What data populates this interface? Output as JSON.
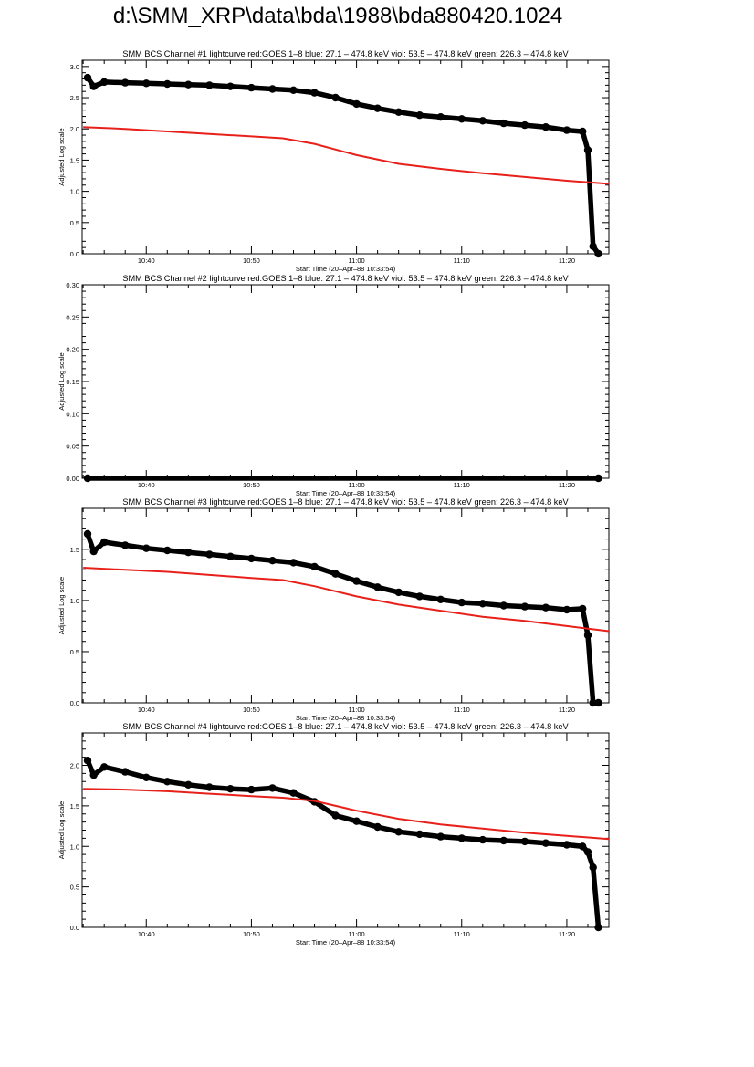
{
  "page": {
    "title": "d:\\SMM_XRP\\data\\bda\\1988\\bda880420.1024"
  },
  "colors": {
    "goes": "#e8201a",
    "bcs": "#000000",
    "axes": "#000000"
  },
  "chart_data": [
    {
      "type": "line",
      "title": "SMM BCS Channel #1 lightcurve  red:GOES 1–8  blue: 27.1 – 474.8 keV  viol: 53.5 – 474.8 keV  green: 226.3 – 474.8 keV",
      "xlabel": "Start Time (20–Apr–88 10:33:54)",
      "ylabel": "Adjusted Log scale",
      "xlim": [
        "10:33:54",
        "11:24:00"
      ],
      "xticks": [
        "10:40",
        "10:50",
        "11:00",
        "11:10",
        "11:20"
      ],
      "ylim": [
        0,
        3.1
      ],
      "yticks": [
        "0.0",
        "0.5",
        "1.0",
        "1.5",
        "2.0",
        "2.5",
        "3.0"
      ],
      "series": [
        {
          "role": "bcs",
          "color": "#000000",
          "x": [
            "10:34:25",
            "10:35:00",
            "10:36:00",
            "10:38:00",
            "10:40:00",
            "10:42:00",
            "10:44:00",
            "10:46:00",
            "10:48:00",
            "10:50:00",
            "10:52:00",
            "10:54:00",
            "10:56:00",
            "10:58:00",
            "11:00:00",
            "11:02:00",
            "11:04:00",
            "11:06:00",
            "11:08:00",
            "11:10:00",
            "11:12:00",
            "11:14:00",
            "11:16:00",
            "11:18:00",
            "11:20:00",
            "11:21:30",
            "11:22:00",
            "11:22:30",
            "11:23:00"
          ],
          "values": [
            2.82,
            2.68,
            2.75,
            2.74,
            2.73,
            2.72,
            2.71,
            2.7,
            2.68,
            2.66,
            2.64,
            2.62,
            2.58,
            2.5,
            2.4,
            2.33,
            2.27,
            2.22,
            2.19,
            2.16,
            2.13,
            2.09,
            2.06,
            2.03,
            1.98,
            1.96,
            1.66,
            0.12,
            0.0
          ]
        },
        {
          "role": "goes",
          "color": "#e8201a",
          "x": [
            "10:34:00",
            "10:38:00",
            "10:42:00",
            "10:46:00",
            "10:50:00",
            "10:53:00",
            "10:56:00",
            "11:00:00",
            "11:04:00",
            "11:08:00",
            "11:12:00",
            "11:16:00",
            "11:20:00",
            "11:24:00"
          ],
          "values": [
            2.03,
            2.0,
            1.96,
            1.92,
            1.88,
            1.85,
            1.76,
            1.58,
            1.44,
            1.36,
            1.29,
            1.23,
            1.17,
            1.12
          ]
        }
      ]
    },
    {
      "type": "line",
      "title": "SMM BCS Channel #2 lightcurve  red:GOES 1–8  blue: 27.1 – 474.8 keV  viol: 53.5 – 474.8 keV  green: 226.3 – 474.8 keV",
      "xlabel": "Start Time (20–Apr–88 10:33:54)",
      "ylabel": "Adjusted Log scale",
      "xlim": [
        "10:33:54",
        "11:24:00"
      ],
      "xticks": [
        "10:40",
        "10:50",
        "11:00",
        "11:10",
        "11:20"
      ],
      "ylim": [
        0,
        0.3
      ],
      "yticks": [
        "0.00",
        "0.05",
        "0.10",
        "0.15",
        "0.20",
        "0.25",
        "0.30"
      ],
      "series": [
        {
          "role": "bcs",
          "color": "#000000",
          "x": [
            "10:34:25",
            "11:23:00"
          ],
          "values": [
            0.0,
            0.0
          ]
        }
      ]
    },
    {
      "type": "line",
      "title": "SMM BCS Channel #3 lightcurve  red:GOES 1–8  blue: 27.1 – 474.8 keV  viol: 53.5 – 474.8 keV  green: 226.3 – 474.8 keV",
      "xlabel": "Start Time (20–Apr–88 10:33:54)",
      "ylabel": "Adjusted Log scale",
      "xlim": [
        "10:33:54",
        "11:24:00"
      ],
      "xticks": [
        "10:40",
        "10:50",
        "11:00",
        "11:10",
        "11:20"
      ],
      "ylim": [
        0,
        1.9
      ],
      "yticks": [
        "0.0",
        "0.5",
        "1.0",
        "1.5"
      ],
      "series": [
        {
          "role": "bcs",
          "color": "#000000",
          "x": [
            "10:34:25",
            "10:35:00",
            "10:36:00",
            "10:38:00",
            "10:40:00",
            "10:42:00",
            "10:44:00",
            "10:46:00",
            "10:48:00",
            "10:50:00",
            "10:52:00",
            "10:54:00",
            "10:56:00",
            "10:58:00",
            "11:00:00",
            "11:02:00",
            "11:04:00",
            "11:06:00",
            "11:08:00",
            "11:10:00",
            "11:12:00",
            "11:14:00",
            "11:16:00",
            "11:18:00",
            "11:20:00",
            "11:21:30",
            "11:22:00",
            "11:22:30",
            "11:23:00"
          ],
          "values": [
            1.65,
            1.48,
            1.57,
            1.54,
            1.51,
            1.49,
            1.47,
            1.45,
            1.43,
            1.41,
            1.39,
            1.37,
            1.33,
            1.26,
            1.19,
            1.13,
            1.08,
            1.04,
            1.01,
            0.98,
            0.97,
            0.95,
            0.94,
            0.93,
            0.91,
            0.92,
            0.66,
            0.0,
            0.0
          ]
        },
        {
          "role": "goes",
          "color": "#e8201a",
          "x": [
            "10:34:00",
            "10:38:00",
            "10:42:00",
            "10:46:00",
            "10:50:00",
            "10:53:00",
            "10:56:00",
            "11:00:00",
            "11:04:00",
            "11:08:00",
            "11:12:00",
            "11:16:00",
            "11:20:00",
            "11:24:00"
          ],
          "values": [
            1.32,
            1.3,
            1.28,
            1.25,
            1.22,
            1.2,
            1.14,
            1.04,
            0.96,
            0.9,
            0.84,
            0.8,
            0.75,
            0.7
          ]
        }
      ]
    },
    {
      "type": "line",
      "title": "SMM BCS Channel #4 lightcurve  red:GOES 1–8  blue: 27.1 – 474.8 keV  viol: 53.5 – 474.8 keV  green: 226.3 – 474.8 keV",
      "xlabel": "Start Time (20–Apr–88 10:33:54)",
      "ylabel": "Adjusted Log scale",
      "xlim": [
        "10:33:54",
        "11:24:00"
      ],
      "xticks": [
        "10:40",
        "10:50",
        "11:00",
        "11:10",
        "11:20"
      ],
      "ylim": [
        0,
        2.4
      ],
      "yticks": [
        "0.0",
        "0.5",
        "1.0",
        "1.5",
        "2.0"
      ],
      "series": [
        {
          "role": "bcs",
          "color": "#000000",
          "x": [
            "10:34:25",
            "10:35:00",
            "10:36:00",
            "10:38:00",
            "10:40:00",
            "10:42:00",
            "10:44:00",
            "10:46:00",
            "10:48:00",
            "10:50:00",
            "10:52:00",
            "10:54:00",
            "10:56:00",
            "10:58:00",
            "11:00:00",
            "11:02:00",
            "11:04:00",
            "11:06:00",
            "11:08:00",
            "11:10:00",
            "11:12:00",
            "11:14:00",
            "11:16:00",
            "11:18:00",
            "11:20:00",
            "11:21:30",
            "11:22:00",
            "11:22:30",
            "11:23:00"
          ],
          "values": [
            2.06,
            1.88,
            1.98,
            1.92,
            1.85,
            1.8,
            1.76,
            1.73,
            1.71,
            1.7,
            1.72,
            1.66,
            1.55,
            1.38,
            1.31,
            1.24,
            1.18,
            1.15,
            1.12,
            1.1,
            1.08,
            1.07,
            1.06,
            1.04,
            1.02,
            1.0,
            0.93,
            0.74,
            0.0
          ]
        },
        {
          "role": "goes",
          "color": "#e8201a",
          "x": [
            "10:34:00",
            "10:38:00",
            "10:42:00",
            "10:46:00",
            "10:50:00",
            "10:53:00",
            "10:56:00",
            "11:00:00",
            "11:04:00",
            "11:08:00",
            "11:12:00",
            "11:16:00",
            "11:20:00",
            "11:24:00"
          ],
          "values": [
            1.71,
            1.7,
            1.68,
            1.65,
            1.62,
            1.6,
            1.56,
            1.44,
            1.34,
            1.27,
            1.22,
            1.17,
            1.13,
            1.09
          ]
        }
      ]
    }
  ]
}
